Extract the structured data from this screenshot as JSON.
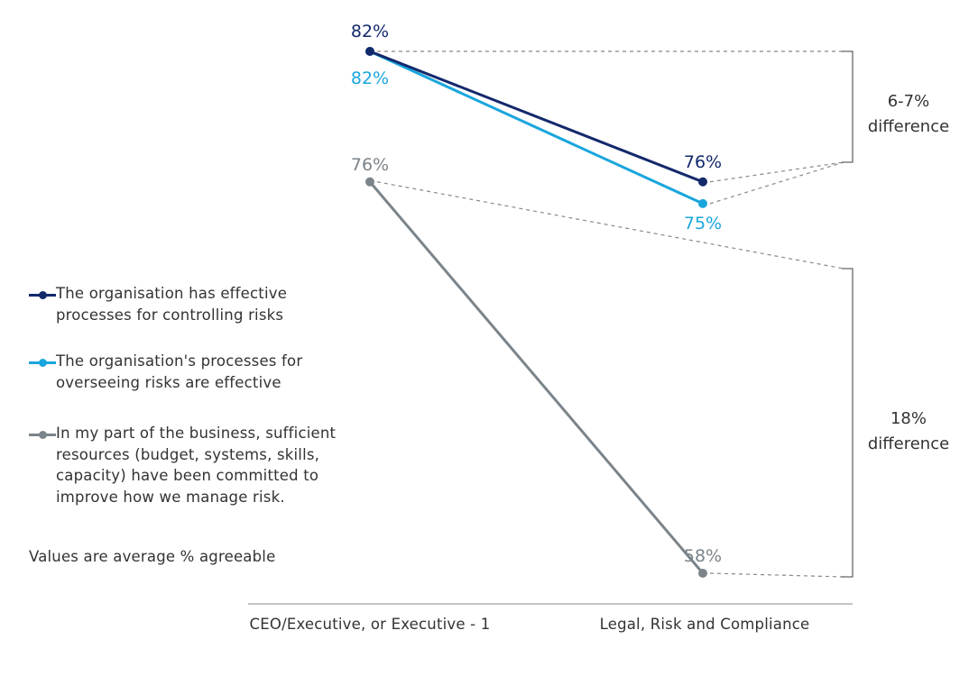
{
  "chart_data": {
    "type": "line",
    "categories": [
      "CEO/Executive, or Executive - 1",
      "Legal, Risk and Compliance"
    ],
    "series": [
      {
        "name": "The organisation has effective processes for controlling risks",
        "values": [
          82,
          76
        ],
        "labels": [
          "82%",
          "76%"
        ],
        "color": "#13296b"
      },
      {
        "name": "The organisation's processes for overseeing risks are effective",
        "values": [
          82,
          75
        ],
        "labels": [
          "82%",
          "75%"
        ],
        "color": "#1aa6dd"
      },
      {
        "name": "In my part of the business, sufficient resources (budget, systems, skills, capacity) have been committed to improve how we manage risk.",
        "values": [
          76,
          58
        ],
        "labels": [
          "76%",
          "58%"
        ],
        "color": "#7b848a"
      }
    ],
    "ylim": [
      56.5,
      82
    ],
    "grid": false,
    "legend_position": "left",
    "annotations": [
      {
        "line1": "6-7%",
        "line2": "difference"
      },
      {
        "line1": "18%",
        "line2": "difference"
      }
    ],
    "note": "Values are average % agreeable"
  }
}
